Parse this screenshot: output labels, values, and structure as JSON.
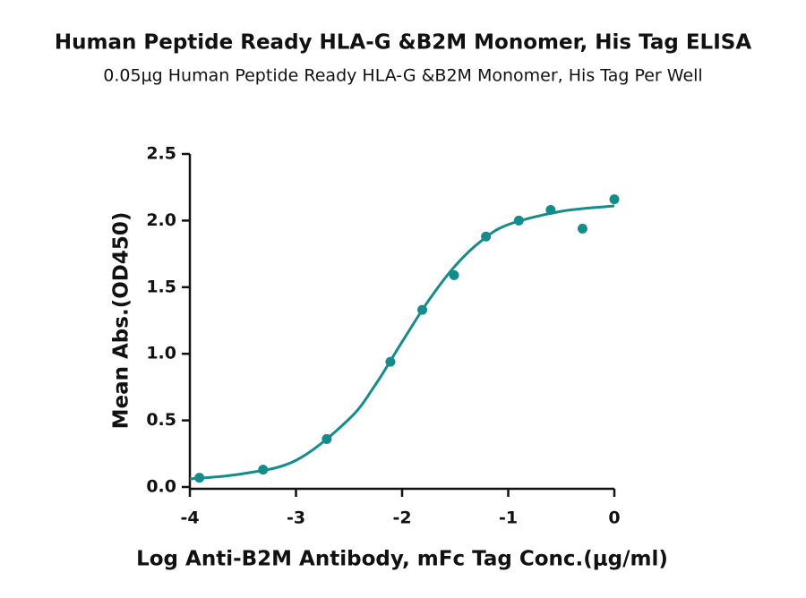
{
  "chart_data": {
    "type": "scatter",
    "title": "Human Peptide Ready HLA-G &B2M Monomer, His Tag ELISA",
    "subtitle": "0.05μg Human Peptide Ready HLA-G &B2M Monomer, His Tag Per Well",
    "x_label": "Log Anti-B2M Antibody, mFc Tag Conc.(μg/ml)",
    "y_label": "Mean Abs.(OD450)",
    "series": [
      {
        "style": "markers",
        "color": "#158c8c",
        "x": [
          -3.91,
          -3.31,
          -2.71,
          -2.11,
          -1.81,
          -1.51,
          -1.21,
          -0.9,
          -0.6,
          -0.3,
          0
        ],
        "values": [
          0.07,
          0.13,
          0.36,
          0.94,
          1.33,
          1.59,
          1.88,
          2.0,
          2.08,
          1.94,
          2.16
        ]
      },
      {
        "style": "line",
        "color": "#158c8c",
        "x": [
          -4,
          -3.5,
          -3,
          -2.5,
          -2.25,
          -2,
          -1.75,
          -1.5,
          -1.25,
          -1,
          -0.5,
          0
        ],
        "values": [
          0.06,
          0.1,
          0.2,
          0.51,
          0.77,
          1.09,
          1.4,
          1.66,
          1.85,
          1.97,
          2.07,
          2.11
        ]
      }
    ],
    "xlim": [
      -4,
      0
    ],
    "xticks": [
      -4,
      -3,
      -2,
      -1,
      0
    ],
    "ylim": [
      0,
      2.5
    ],
    "yticks": [
      {
        "value": 0,
        "label": "0.0"
      },
      0.5,
      {
        "value": 1,
        "label": "1.0"
      },
      1.5,
      {
        "value": 2,
        "label": "2.0"
      },
      2.5
    ]
  }
}
